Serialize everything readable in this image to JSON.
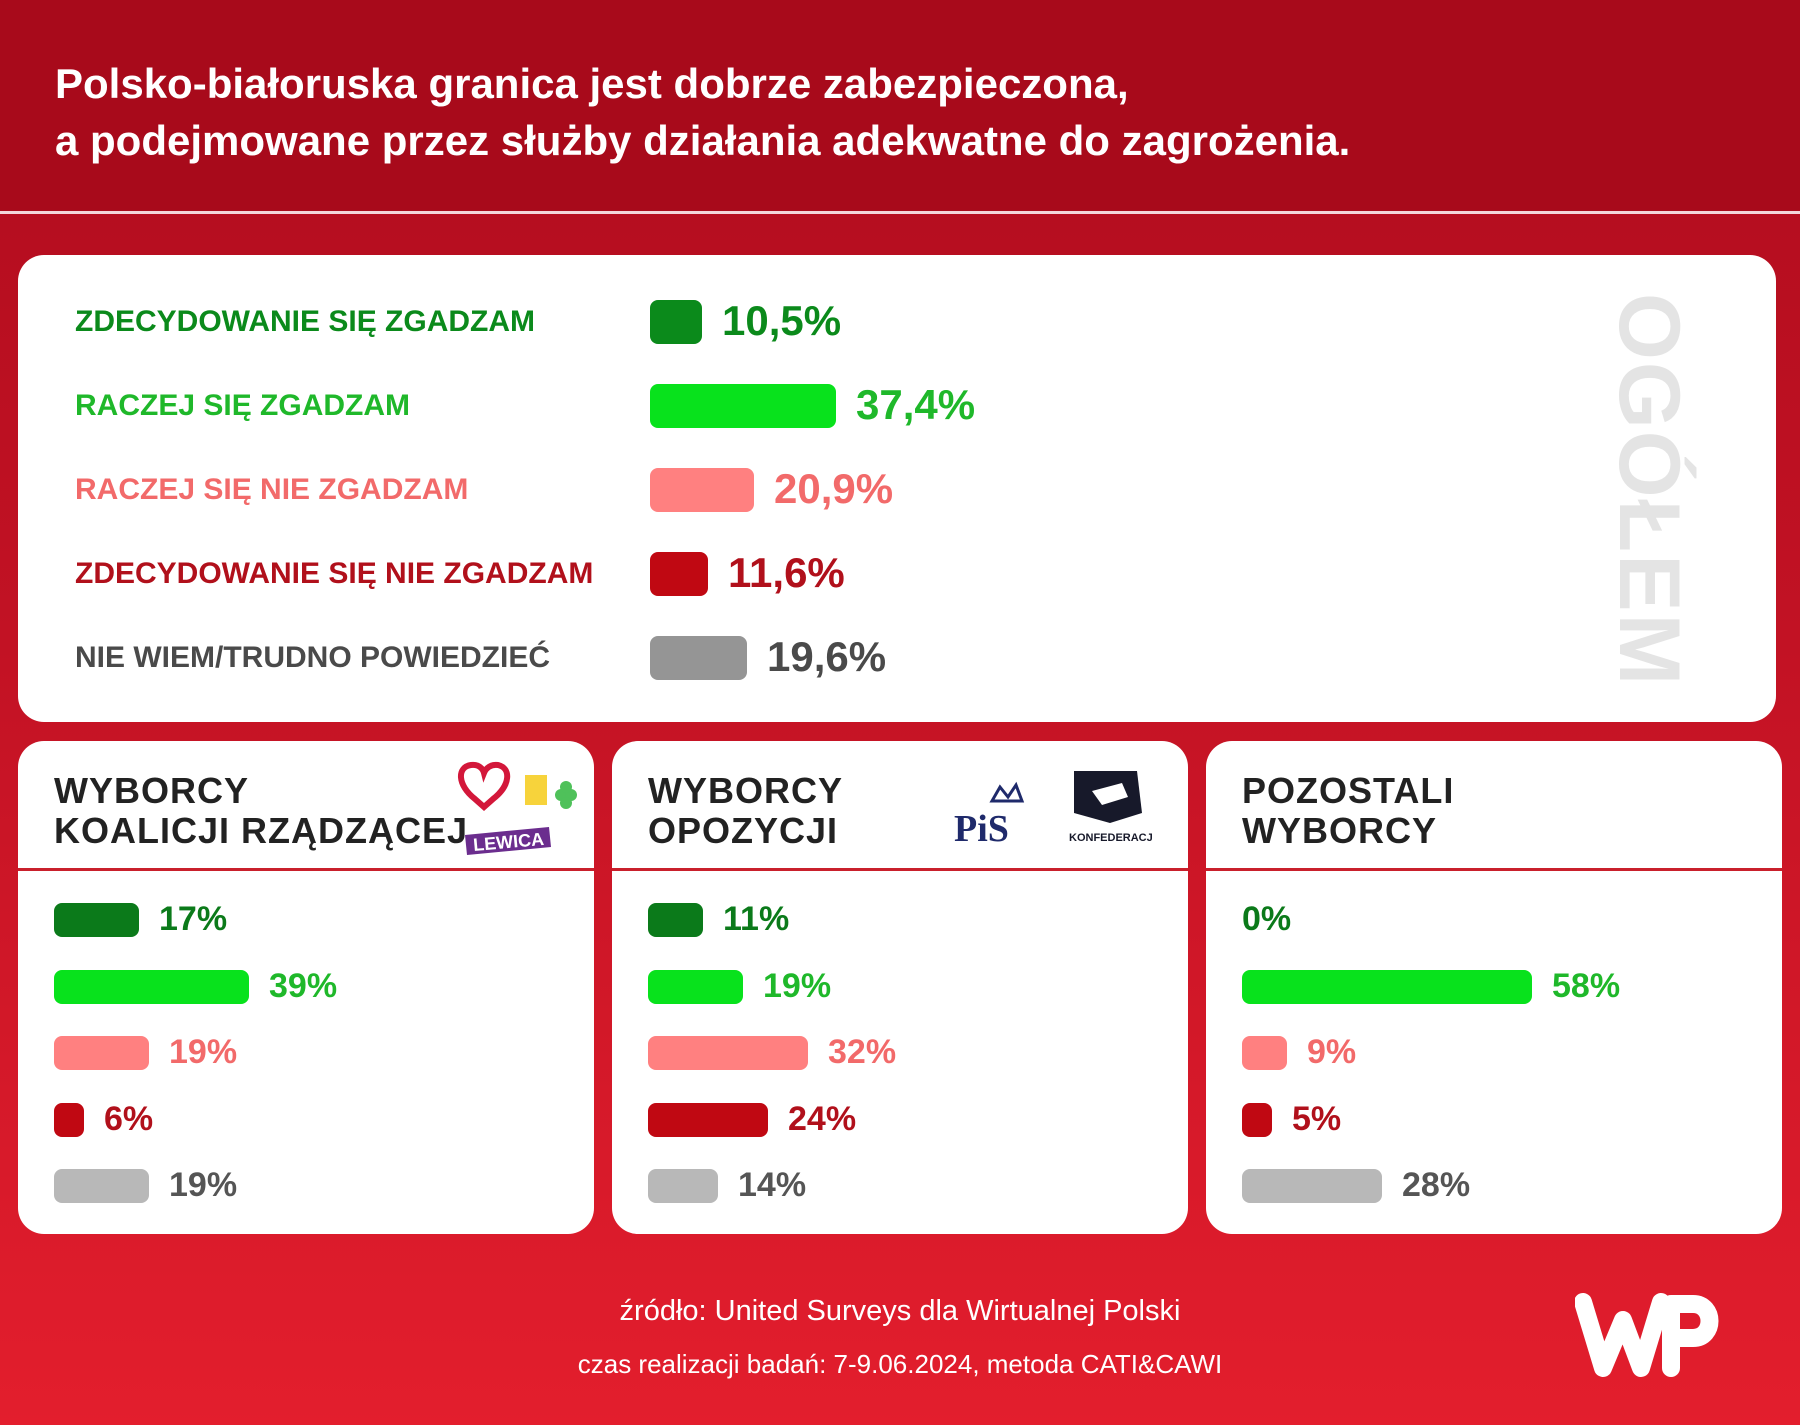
{
  "title": {
    "line1": "Polsko-białoruska granica jest dobrze zabezpieczona,",
    "line2": "a podejmowane przez służby działania adekwatne do zagrożenia."
  },
  "overall": {
    "side_label": "OGÓŁEM",
    "rows": [
      {
        "label": "ZDECYDOWANIE SIĘ ZGADZAM",
        "value": "10,5%",
        "color": "#0b8a1b"
      },
      {
        "label": "RACZEJ SIĘ ZGADZAM",
        "value": "37,4%",
        "color": "#08e21c"
      },
      {
        "label": "RACZEJ SIĘ NIE ZGADZAM",
        "value": "20,9%",
        "color": "#ff8080"
      },
      {
        "label": "ZDECYDOWANIE SIĘ NIE ZGADZAM",
        "value": "11,6%",
        "color": "#c00812"
      },
      {
        "label": "NIE WIEM/TRUDNO POWIEDZIEĆ",
        "value": "19,6%",
        "color": "#959595"
      }
    ]
  },
  "groups": [
    {
      "line1": "WYBORCY",
      "line2": "KOALICJI RZĄDZĄCEJ",
      "values": [
        "17%",
        "39%",
        "19%",
        "6%",
        "19%"
      ],
      "logo_text": "LEWICA"
    },
    {
      "line1": "WYBORCY",
      "line2": "OPOZYCJI",
      "values": [
        "11%",
        "19%",
        "32%",
        "24%",
        "14%"
      ],
      "logo_text_1": "PiS",
      "logo_text_2": "KONFEDERACJA"
    },
    {
      "line1": "POZOSTALI",
      "line2": "WYBORCY",
      "values": [
        "0%",
        "58%",
        "9%",
        "5%",
        "28%"
      ]
    }
  ],
  "footer": {
    "source": "źródło: United Surveys dla Wirtualnej Polski",
    "time": "czas realizacji badań: 7-9.06.2024, metoda CATI&CAWI"
  },
  "chart_data": [
    {
      "type": "bar",
      "title": "Polsko-białoruska granica jest dobrze zabezpieczona, a podejmowane przez służby działania adekwatne do zagrożenia.",
      "categories": [
        "ZDECYDOWANIE SIĘ ZGADZAM",
        "RACZEJ SIĘ ZGADZAM",
        "RACZEJ SIĘ NIE ZGADZAM",
        "ZDECYDOWANIE SIĘ NIE ZGADZAM",
        "NIE WIEM/TRUDNO POWIEDZIEĆ"
      ],
      "series": [
        {
          "name": "OGÓŁEM",
          "values": [
            10.5,
            37.4,
            20.9,
            11.6,
            19.6
          ]
        }
      ],
      "orientation": "horizontal"
    },
    {
      "type": "bar",
      "categories": [
        "ZDECYDOWANIE SIĘ ZGADZAM",
        "RACZEJ SIĘ ZGADZAM",
        "RACZEJ SIĘ NIE ZGADZAM",
        "ZDECYDOWANIE SIĘ NIE ZGADZAM",
        "NIE WIEM/TRUDNO POWIEDZIEĆ"
      ],
      "series": [
        {
          "name": "WYBORCY KOALICJI RZĄDZĄCEJ",
          "values": [
            17,
            39,
            19,
            6,
            19
          ]
        },
        {
          "name": "WYBORCY OPOZYCJI",
          "values": [
            11,
            19,
            32,
            24,
            14
          ]
        },
        {
          "name": "POZOSTALI WYBORCY",
          "values": [
            0,
            58,
            9,
            5,
            28
          ]
        }
      ],
      "orientation": "horizontal"
    }
  ]
}
